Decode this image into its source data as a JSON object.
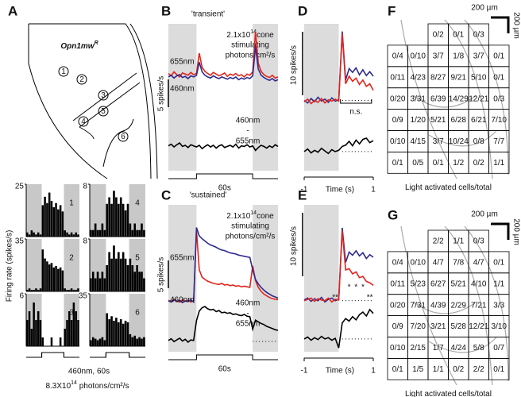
{
  "panels": {
    "A": {
      "label": "A",
      "title": "Opn1mw",
      "title_sup": "R",
      "regions": [
        "1",
        "2",
        "3",
        "4",
        "5",
        "6"
      ],
      "y_label": "Firing rate (spikes/s)",
      "histograms": [
        {
          "name": "1",
          "ylim": [
            0,
            25
          ],
          "yticks": [
            25
          ],
          "values": [
            2,
            1,
            3,
            2,
            1,
            2,
            1,
            15,
            19,
            16,
            21,
            17,
            14,
            16,
            13,
            15,
            12,
            3,
            2,
            1,
            2,
            1,
            2,
            1
          ]
        },
        {
          "name": "2",
          "ylim": [
            0,
            35
          ],
          "yticks": [
            35
          ],
          "values": [
            1,
            2,
            1,
            1,
            2,
            1,
            2,
            28,
            22,
            20,
            18,
            19,
            16,
            17,
            15,
            16,
            14,
            2,
            1,
            1,
            2,
            1,
            1,
            2
          ]
        },
        {
          "name": "3",
          "ylim": [
            0,
            6
          ],
          "yticks": [
            6
          ],
          "values": [
            3,
            4,
            2,
            5,
            3,
            4,
            3,
            1,
            0,
            0,
            0,
            1,
            0,
            0,
            0,
            1,
            0,
            2,
            3,
            4,
            3,
            5,
            4,
            3
          ]
        },
        {
          "name": "4",
          "ylim": [
            0,
            8
          ],
          "yticks": [
            8
          ],
          "values": [
            1,
            1,
            2,
            1,
            1,
            2,
            1,
            5,
            6,
            5,
            7,
            6,
            5,
            6,
            5,
            4,
            5,
            2,
            1,
            2,
            1,
            1,
            2,
            1
          ]
        },
        {
          "name": "5",
          "ylim": [
            0,
            8
          ],
          "yticks": [
            8
          ],
          "values": [
            2,
            3,
            2,
            3,
            2,
            3,
            2,
            4,
            6,
            5,
            7,
            5,
            6,
            5,
            6,
            5,
            4,
            5,
            4,
            3,
            4,
            3,
            3,
            2
          ]
        },
        {
          "name": "6",
          "ylim": [
            0,
            35
          ],
          "yticks": [
            35
          ],
          "values": [
            4,
            6,
            5,
            4,
            5,
            6,
            4,
            22,
            18,
            20,
            17,
            19,
            16,
            18,
            15,
            17,
            16,
            8,
            6,
            7,
            5,
            6,
            5,
            6
          ]
        }
      ],
      "stimulus": "460nm, 60s",
      "intensity_base": "8.3X10",
      "intensity_exp": "14",
      "intensity_unit": " photons/cm²/s"
    },
    "B": {
      "label": "B",
      "title": "'transient'",
      "intensity_base": "2.1x10",
      "intensity_exp": "14",
      "intensity_rest": "cone",
      "intensity_line2": "stimulating",
      "intensity_line3": "photons/cm²/s",
      "scale_label": "5 spikes/s",
      "ylim": [
        0,
        26
      ],
      "series": [
        {
          "name": "655nm",
          "color": "#e3241b",
          "values": [
            17.2,
            16.8,
            17.5,
            17.0,
            16.6,
            17.3,
            17.1,
            16.9,
            17.4,
            17.0,
            17.2,
            20.8,
            18.3,
            17.6,
            17.2,
            16.9,
            17.4,
            17.1,
            16.8,
            17.0,
            17.3,
            16.7,
            17.1,
            16.9,
            17.2,
            16.8,
            17.0,
            16.6,
            17.1,
            16.9,
            17.5,
            24.6,
            19.0,
            17.6,
            17.0,
            16.7,
            16.5,
            16.9,
            16.4,
            16.6
          ]
        },
        {
          "name": "460nm",
          "color": "#2d2b8f",
          "values": [
            16.6,
            16.9,
            16.4,
            16.8,
            17.0,
            16.5,
            16.7,
            16.3,
            16.8,
            16.6,
            16.9,
            19.2,
            17.5,
            16.9,
            16.6,
            16.4,
            16.8,
            16.5,
            16.3,
            16.6,
            16.4,
            16.2,
            16.5,
            16.3,
            16.6,
            16.1,
            16.4,
            16.2,
            16.5,
            16.3,
            16.8,
            22.0,
            18.0,
            16.9,
            16.5,
            16.2,
            16.0,
            16.3,
            15.9,
            16.1
          ]
        },
        {
          "color": "#000000",
          "values": [
            4.4,
            4.7,
            4.2,
            4.6,
            4.9,
            4.3,
            4.5,
            4.1,
            4.6,
            4.4,
            4.2,
            4.5,
            3.9,
            4.3,
            4.6,
            4.2,
            4.5,
            4.0,
            4.4,
            4.6,
            4.1,
            4.3,
            4.5,
            4.2,
            4.7,
            4.0,
            4.4,
            4.3,
            4.6,
            4.2,
            4.4,
            3.6,
            4.1,
            4.5,
            4.3,
            4.0,
            4.4,
            4.1,
            4.6,
            4.3
          ]
        }
      ],
      "diff_label": [
        "460nm",
        "-",
        "655nm"
      ],
      "stimulus": "60s"
    },
    "C": {
      "label": "C",
      "title": "'sustained'",
      "intensity_base": "2.1x10",
      "intensity_exp": "14",
      "intensity_rest": "cone",
      "intensity_line2": "stimulating",
      "intensity_line3": "photons/cm²/s",
      "scale_label": "5 spikes/s",
      "ylim": [
        0,
        26
      ],
      "series": [
        {
          "name": "655nm",
          "color": "#e3241b",
          "values": [
            9.1,
            8.9,
            9.3,
            9.0,
            8.8,
            9.2,
            8.9,
            9.1,
            8.8,
            9.0,
            21.5,
            14.5,
            13.2,
            12.8,
            12.5,
            12.3,
            12.1,
            12.0,
            11.9,
            12.1,
            11.8,
            11.9,
            11.7,
            11.8,
            11.6,
            11.7,
            11.5,
            11.6,
            11.5,
            11.4,
            15.2,
            12.6,
            11.4,
            10.7,
            10.2,
            9.9,
            9.6,
            9.4,
            9.3,
            9.2
          ]
        },
        {
          "name": "460nm",
          "color": "#2d2b8f",
          "values": [
            9.0,
            8.8,
            9.2,
            8.9,
            9.1,
            8.7,
            9.0,
            8.9,
            9.2,
            8.8,
            22.0,
            20.5,
            20.0,
            19.6,
            19.2,
            18.9,
            18.7,
            18.5,
            18.2,
            18.0,
            17.9,
            17.7,
            17.5,
            17.4,
            17.3,
            17.1,
            17.0,
            16.9,
            16.8,
            16.7,
            14.5,
            12.8,
            12.0,
            11.4,
            10.9,
            10.5,
            10.2,
            9.9,
            9.7,
            9.5
          ]
        },
        {
          "color": "#000000",
          "values": [
            2.0,
            2.3,
            1.8,
            2.1,
            2.4,
            1.9,
            2.2,
            1.7,
            2.1,
            2.0,
            5.5,
            7.2,
            7.8,
            8.0,
            7.6,
            7.4,
            7.5,
            7.1,
            7.3,
            6.9,
            7.0,
            6.8,
            6.9,
            6.6,
            6.7,
            6.5,
            6.4,
            6.6,
            6.3,
            6.2,
            4.0,
            5.6,
            5.3,
            5.0,
            4.8,
            4.5,
            4.3,
            4.1,
            3.9,
            3.8
          ]
        }
      ],
      "diff_label": [
        "460nm",
        "-",
        "655nm"
      ],
      "stimulus": "60s"
    },
    "D": {
      "label": "D",
      "scale_label": "10 spikes/s",
      "x_label": "Time (s)",
      "xlim": [
        -1,
        1
      ],
      "xticks": [
        -1,
        1
      ],
      "ylim": [
        0,
        23
      ],
      "x": [
        -1,
        -0.9,
        -0.8,
        -0.7,
        -0.6,
        -0.5,
        -0.4,
        -0.3,
        -0.2,
        -0.1,
        0,
        0.1,
        0.2,
        0.3,
        0.4,
        0.5,
        0.6,
        0.7,
        0.8,
        0.9,
        1
      ],
      "series": [
        {
          "color": "#2d2b8f",
          "values": [
            11.0,
            10.6,
            11.3,
            10.8,
            11.5,
            10.9,
            11.2,
            10.7,
            11.4,
            10.9,
            11.1,
            21.8,
            14.2,
            16.0,
            15.4,
            16.1,
            15.0,
            15.8,
            14.9,
            15.5,
            14.8
          ]
        },
        {
          "color": "#e3241b",
          "values": [
            10.8,
            11.2,
            10.5,
            11.0,
            10.7,
            11.3,
            10.6,
            11.1,
            10.9,
            11.2,
            10.9,
            21.5,
            13.6,
            14.8,
            14.0,
            14.5,
            13.5,
            14.2,
            13.2,
            13.6,
            12.6
          ]
        },
        {
          "color": "#000000",
          "values": [
            3.0,
            3.4,
            2.8,
            3.2,
            2.9,
            3.5,
            3.1,
            2.7,
            3.3,
            3.0,
            3.2,
            3.8,
            4.0,
            4.6,
            3.9,
            4.8,
            4.2,
            4.9,
            5.1,
            4.4,
            4.7
          ]
        }
      ],
      "annotation": "n.s."
    },
    "E": {
      "label": "E",
      "scale_label": "10 spikes/s",
      "x_label": "Time (s)",
      "xlim": [
        -1,
        1
      ],
      "xticks": [
        -1,
        1
      ],
      "ylim": [
        0,
        23
      ],
      "x": [
        -1,
        -0.9,
        -0.8,
        -0.7,
        -0.6,
        -0.5,
        -0.4,
        -0.3,
        -0.2,
        -0.1,
        0,
        0.1,
        0.2,
        0.3,
        0.4,
        0.5,
        0.6,
        0.7,
        0.8,
        0.9,
        1
      ],
      "series": [
        {
          "color": "#2d2b8f",
          "values": [
            8.1,
            8.4,
            7.9,
            8.3,
            8.0,
            8.5,
            7.8,
            8.2,
            8.4,
            8.0,
            8.2,
            19.4,
            14.0,
            15.6,
            15.1,
            15.8,
            15.0,
            15.5,
            14.6,
            15.2,
            14.8
          ]
        },
        {
          "color": "#e3241b",
          "values": [
            8.0,
            8.2,
            8.4,
            7.9,
            8.3,
            8.1,
            8.0,
            8.4,
            7.8,
            8.2,
            8.1,
            19.0,
            12.8,
            13.0,
            12.2,
            12.5,
            11.6,
            11.8,
            11.0,
            10.8,
            10.4
          ]
        },
        {
          "color": "#000000",
          "values": [
            2.0,
            2.3,
            1.8,
            2.2,
            1.9,
            2.4,
            2.0,
            2.2,
            1.8,
            2.1,
            0.6,
            4.5,
            5.2,
            4.8,
            5.5,
            5.0,
            5.8,
            6.2,
            5.6,
            6.6,
            6.0
          ]
        }
      ],
      "annotations": [
        "*",
        "*",
        "*",
        "**",
        "**"
      ]
    },
    "F": {
      "label": "F",
      "scale_h": "200 µm",
      "scale_v": "200 µm",
      "caption": "Light activated cells/total",
      "rows": [
        [
          null,
          null,
          "0/2",
          "0/1",
          "0/3",
          null
        ],
        [
          "0/4",
          "0/10",
          "3/7",
          "1/8",
          "3/7",
          "0/1"
        ],
        [
          "0/11",
          "4/23",
          "8/27",
          "9/21",
          "5/10",
          "0/1"
        ],
        [
          "0/20",
          "3/31",
          "6/39",
          "14/29",
          "12/21",
          "0/3"
        ],
        [
          "0/9",
          "1/20",
          "5/21",
          "6/28",
          "6/21",
          "7/10"
        ],
        [
          "0/10",
          "4/15",
          "3/7",
          "10/24",
          "0/8",
          "7/7"
        ],
        [
          "0/1",
          "0/5",
          "0/1",
          "1/2",
          "0/2",
          "1/1"
        ]
      ]
    },
    "G": {
      "label": "G",
      "scale_h": "200 µm",
      "scale_v": "200 µm",
      "caption": "Light activated cells/total",
      "rows": [
        [
          null,
          null,
          "2/2",
          "1/1",
          "0/3",
          null
        ],
        [
          "0/4",
          "0/10",
          "4/7",
          "7/8",
          "4/7",
          "0/1"
        ],
        [
          "0/11",
          "5/23",
          "6/27",
          "5/21",
          "4/10",
          "1/1"
        ],
        [
          "0/20",
          "7/31",
          "4/39",
          "2/29",
          "7/21",
          "3/3"
        ],
        [
          "0/9",
          "7/20",
          "3/21",
          "5/28",
          "12/21",
          "3/10"
        ],
        [
          "0/10",
          "2/15",
          "1/7",
          "4/24",
          "5/8",
          "0/7"
        ],
        [
          "0/1",
          "1/5",
          "1/1",
          "0/2",
          "2/2",
          "0/1"
        ]
      ]
    }
  }
}
